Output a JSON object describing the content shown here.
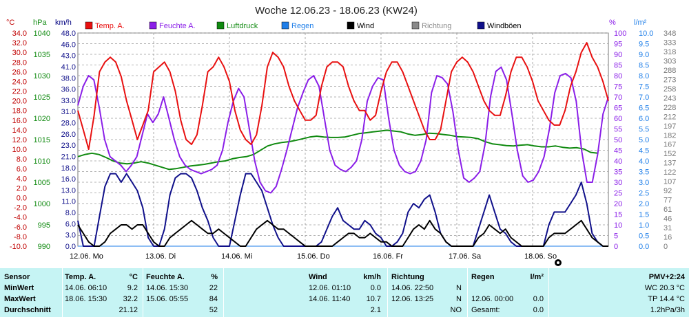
{
  "chart_data": {
    "type": "line",
    "title": "Woche 12.06.23 - 18.06.23 (KW24)",
    "days": [
      "12.06.  Mo",
      "13.06.  Di",
      "14.06.  Mi",
      "15.06.  Do",
      "16.06.  Fr",
      "17.06.  Sa",
      "18.06.  So"
    ],
    "axes": {
      "temp": {
        "unit": "°C",
        "range": [
          -10,
          34
        ],
        "ticks": [
          "34.0",
          "32.0",
          "30.0",
          "28.0",
          "26.0",
          "24.0",
          "22.0",
          "20.0",
          "18.0",
          "16.0",
          "14.0",
          "12.0",
          "10.0",
          "8.0",
          "6.0",
          "4.0",
          "2.0",
          "0.0",
          "-2.0",
          "-4.0",
          "-6.0",
          "-8.0",
          "-10.0"
        ]
      },
      "press": {
        "unit": "hPa",
        "range": [
          990,
          1040
        ],
        "ticks": [
          "1040",
          "1035",
          "1030",
          "1025",
          "1020",
          "1015",
          "1010",
          "1005",
          "1000",
          "995",
          "990"
        ]
      },
      "wind": {
        "unit": "km/h",
        "range": [
          0,
          50
        ],
        "ticks": [
          "48.0",
          "46.0",
          "43.0",
          "41.0",
          "38.0",
          "36.0",
          "33.0",
          "31.0",
          "28.0",
          "26.0",
          "23.0",
          "21.0",
          "18.0",
          "16.0",
          "13.0",
          "11.0",
          "8.0",
          "6.0",
          "3.0",
          "0.0"
        ]
      },
      "hum": {
        "unit": "%",
        "range": [
          0,
          100
        ],
        "ticks": [
          "100",
          "95",
          "90",
          "85",
          "80",
          "75",
          "70",
          "65",
          "60",
          "55",
          "50",
          "45",
          "40",
          "35",
          "30",
          "25",
          "20",
          "15",
          "10",
          "5",
          "0"
        ]
      },
      "rain": {
        "unit": "l/m²",
        "range": [
          0,
          10
        ],
        "ticks": [
          "10.0",
          "9.5",
          "9.0",
          "8.5",
          "8.0",
          "7.5",
          "7.0",
          "6.5",
          "6.0",
          "5.5",
          "5.0",
          "4.5",
          "4.0",
          "3.5",
          "3.0",
          "2.5",
          "2.0",
          "1.5",
          "1.0",
          "0.5",
          "0.0"
        ]
      },
      "dir": {
        "ticks": [
          "348",
          "333",
          "318",
          "303",
          "288",
          "273",
          "258",
          "243",
          "228",
          "212",
          "197",
          "182",
          "167",
          "152",
          "137",
          "122",
          "107",
          "92",
          "77",
          "61",
          "46",
          "31",
          "16",
          "0"
        ]
      }
    },
    "legend": [
      {
        "name": "Temp. A.",
        "color": "#e81010"
      },
      {
        "name": "Feuchte A.",
        "color": "#8a1ee8"
      },
      {
        "name": "Luftdruck",
        "color": "#108a10"
      },
      {
        "name": "Regen",
        "color": "#1e7ee8"
      },
      {
        "name": "Wind",
        "color": "#000000"
      },
      {
        "name": "Richtung",
        "color": "#8a8a8a"
      },
      {
        "name": "Windböen",
        "color": "#10108a"
      }
    ],
    "series": [
      {
        "name": "Temp. A.",
        "axis": "temp",
        "values": [
          18,
          14,
          10,
          17,
          26,
          28,
          29,
          28,
          25,
          20,
          16,
          12,
          15,
          18,
          26,
          27,
          28,
          26,
          22,
          16,
          12,
          11,
          13,
          19,
          26,
          27,
          29,
          27,
          24,
          18,
          14,
          12,
          11,
          13,
          19,
          27,
          30,
          29,
          27,
          23,
          20,
          18,
          16,
          16,
          17,
          23,
          27,
          28,
          28,
          27,
          23,
          20,
          18,
          18,
          16,
          17,
          22,
          26,
          28,
          28,
          26,
          23,
          20,
          17,
          14,
          12,
          12,
          14,
          20,
          26,
          28,
          29,
          28,
          26,
          23,
          20,
          18,
          17,
          17,
          21,
          26,
          29,
          29,
          27,
          24,
          20,
          18,
          16,
          15,
          15,
          18,
          23,
          26,
          30,
          32,
          29,
          27,
          24,
          20
        ]
      },
      {
        "name": "Feuchte A.",
        "axis": "hum",
        "values": [
          66,
          75,
          80,
          78,
          65,
          50,
          42,
          40,
          38,
          35,
          38,
          42,
          52,
          62,
          58,
          62,
          70,
          60,
          50,
          42,
          38,
          36,
          35,
          34,
          35,
          36,
          38,
          45,
          58,
          68,
          74,
          70,
          55,
          40,
          30,
          26,
          25,
          28,
          36,
          45,
          55,
          65,
          72,
          78,
          80,
          75,
          60,
          45,
          38,
          36,
          35,
          37,
          40,
          50,
          68,
          75,
          79,
          78,
          60,
          45,
          38,
          35,
          34,
          35,
          40,
          50,
          72,
          80,
          79,
          76,
          63,
          45,
          32,
          30,
          32,
          35,
          48,
          70,
          82,
          84,
          78,
          62,
          45,
          33,
          30,
          31,
          35,
          42,
          55,
          72,
          80,
          81,
          79,
          68,
          45,
          30,
          30,
          43,
          62,
          70
        ]
      },
      {
        "name": "Luftdruck",
        "axis": "press",
        "values": [
          1011.0,
          1011.5,
          1011.8,
          1011.5,
          1010.8,
          1010.0,
          1009.5,
          1009.3,
          1009.5,
          1009.8,
          1009.5,
          1009.0,
          1008.5,
          1008.0,
          1008.2,
          1008.5,
          1008.8,
          1009.0,
          1009.2,
          1009.5,
          1009.8,
          1010.0,
          1010.5,
          1010.8,
          1011.0,
          1011.5,
          1012.5,
          1013.5,
          1014.0,
          1014.3,
          1014.5,
          1014.8,
          1015.2,
          1015.6,
          1015.8,
          1015.6,
          1015.5,
          1015.5,
          1015.6,
          1016.0,
          1016.4,
          1016.6,
          1016.8,
          1017.0,
          1017.2,
          1017.0,
          1016.8,
          1016.3,
          1016.0,
          1016.2,
          1016.5,
          1016.4,
          1016.2,
          1016.0,
          1015.7,
          1015.6,
          1015.5,
          1015.2,
          1014.5,
          1014.0,
          1013.8,
          1013.6,
          1013.5,
          1013.7,
          1013.8,
          1013.5,
          1013.3,
          1013.3,
          1013.5,
          1013.2,
          1013.0,
          1013.1,
          1012.8,
          1012.0,
          1011.8
        ],
        "x_range": [
          0,
          0.98
        ]
      },
      {
        "name": "Wind",
        "axis": "wind",
        "values": [
          5,
          3,
          1,
          0,
          0,
          1,
          3,
          4,
          5,
          5,
          4,
          5,
          5,
          3,
          1,
          0,
          0,
          2,
          3,
          4,
          5,
          6,
          5,
          4,
          3,
          3,
          4,
          3,
          2,
          1,
          0,
          0,
          2,
          4,
          5,
          6,
          5,
          4,
          4,
          3,
          2,
          1,
          0,
          0,
          0,
          0,
          0,
          0,
          1,
          2,
          3,
          3,
          2,
          2,
          3,
          2,
          1,
          1,
          0,
          0,
          0,
          2,
          4,
          5,
          4,
          6,
          4,
          3,
          1,
          0,
          0,
          0,
          0,
          0,
          2,
          3,
          5,
          4,
          3,
          4,
          2,
          1,
          0,
          0,
          0,
          0,
          0,
          2,
          3,
          3,
          3,
          4,
          5,
          6,
          4,
          2,
          1,
          0,
          0
        ]
      },
      {
        "name": "Windböen",
        "axis": "wind",
        "values": [
          6,
          0,
          0,
          0,
          7,
          14,
          17,
          17,
          15,
          17,
          15,
          13,
          9,
          2,
          0,
          0,
          4,
          12,
          16,
          17,
          17,
          16,
          13,
          9,
          6,
          2,
          0,
          0,
          0,
          6,
          12,
          17,
          17,
          15,
          13,
          9,
          5,
          2,
          0,
          0,
          0,
          0,
          0,
          0,
          0,
          1,
          4,
          7,
          9,
          6,
          5,
          4,
          4,
          6,
          5,
          3,
          2,
          0,
          0,
          1,
          3,
          8,
          10,
          9,
          11,
          12,
          8,
          3,
          1,
          0,
          0,
          0,
          0,
          0,
          4,
          8,
          12,
          8,
          4,
          3,
          1,
          0,
          0,
          0,
          0,
          0,
          0,
          5,
          8,
          8,
          8,
          10,
          12,
          15,
          10,
          3,
          1,
          0,
          0
        ]
      },
      {
        "name": "Regen",
        "axis": "rain",
        "values": [
          0,
          0,
          0,
          0,
          0,
          0,
          0,
          0,
          0,
          0,
          0,
          0,
          0,
          0,
          0,
          0,
          0,
          0,
          0,
          0,
          0,
          0,
          0,
          0,
          0,
          0,
          0,
          0,
          0,
          0
        ]
      }
    ]
  },
  "stats": {
    "headers": {
      "sensor": "Sensor",
      "temp": "Temp. A.",
      "temp_unit": "°C",
      "hum": "Feuchte A.",
      "hum_unit": "%",
      "wind": "Wind",
      "wind_unit": "km/h",
      "dir": "Richtung",
      "rain": "Regen",
      "rain_unit": "l/m²",
      "pmv": "PMV+2:24"
    },
    "rows": [
      {
        "label": "MinWert",
        "temp_time": "14.06.  06:10",
        "temp_val": "9.2",
        "hum_time": "14.06.  15:30",
        "hum_val": "22",
        "wind_time": "12.06.  01:10",
        "wind_val": "0.0",
        "dir_time": "14.06.  22:50",
        "dir_val": "N",
        "rain_time": "",
        "rain_val": "",
        "extra": "WC 20.3 °C"
      },
      {
        "label": "MaxWert",
        "temp_time": "18.06.  15:30",
        "temp_val": "32.2",
        "hum_time": "15.06.  05:55",
        "hum_val": "84",
        "wind_time": "14.06.  11:40",
        "wind_val": "10.7",
        "dir_time": "12.06.  13:25",
        "dir_val": "N",
        "rain_time": "12.06.  00:00",
        "rain_val": "0.0",
        "extra": "TP 14.4 °C"
      },
      {
        "label": "Durchschnitt",
        "temp_time": "",
        "temp_val": "21.12",
        "hum_time": "",
        "hum_val": "52",
        "wind_time": "",
        "wind_val": "2.1",
        "dir_time": "",
        "dir_val": "NO",
        "rain_time": "Gesamt:",
        "rain_val": "0.0",
        "extra": "1.2hPa/3h"
      }
    ]
  }
}
